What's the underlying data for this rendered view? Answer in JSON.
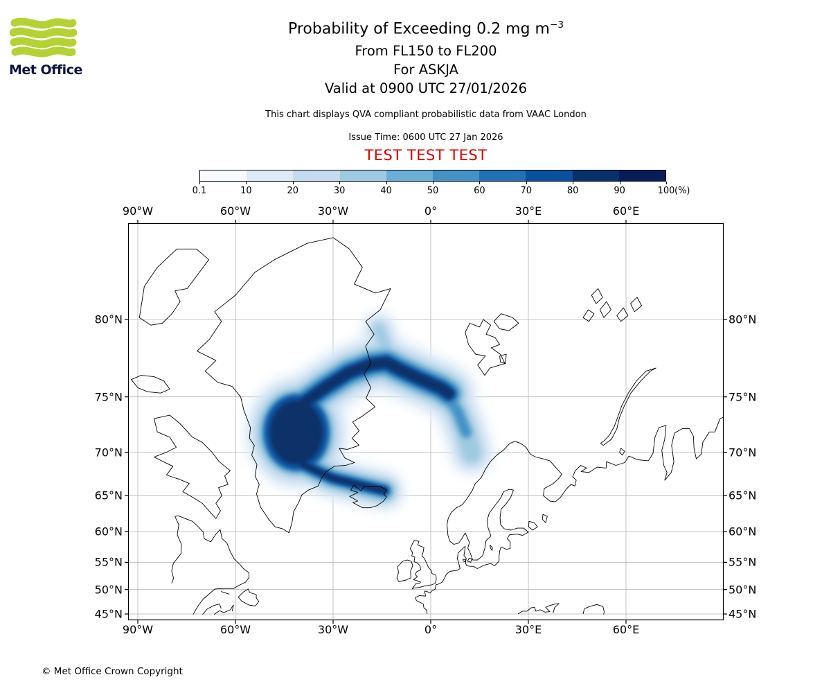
{
  "header": {
    "logo_text": "Met Office",
    "title_main": "Probability of Exceeding 0.2 mg m",
    "title_exponent": "−3",
    "subtitle1": "From FL150 to FL200",
    "subtitle2": "For ASKJA",
    "subtitle3": "Valid at 0900 UTC 27/01/2026",
    "description": "This chart displays QVA compliant probabilistic data from VAAC London",
    "issue_time": "Issue Time: 0600 UTC 27 Jan 2026",
    "test_banner": "TEST TEST TEST"
  },
  "colorbar": {
    "labels": [
      "0.1",
      "10",
      "20",
      "30",
      "40",
      "50",
      "60",
      "70",
      "80",
      "90",
      "100"
    ],
    "unit": "(%)",
    "colors": [
      "#f7fbff",
      "#deebf7",
      "#c6dbef",
      "#9ecae1",
      "#6baed6",
      "#4292c6",
      "#2171b5",
      "#08519c",
      "#08306b",
      "#081d58"
    ]
  },
  "map": {
    "lon_labels": [
      "90°W",
      "60°W",
      "30°W",
      "0°",
      "30°E",
      "60°E"
    ],
    "lon_values": [
      -90,
      -60,
      -30,
      0,
      30,
      60
    ],
    "lat_labels": [
      "80°N",
      "75°N",
      "70°N",
      "65°N",
      "60°N",
      "55°N",
      "50°N",
      "45°N"
    ],
    "lat_values": [
      80,
      75,
      70,
      65,
      60,
      55,
      50,
      45
    ]
  },
  "footer": {
    "copyright": "© Met Office Crown Copyright"
  },
  "colors": {
    "test_red": "#dd0000",
    "logo_green": "#b4d233",
    "logo_navy": "#0e1340",
    "plume_scale_low": "#deebf7",
    "plume_scale_high": "#08306b"
  },
  "chart_data": {
    "type": "heatmap",
    "title": "Probability of Exceeding 0.2 mg m^-3",
    "units": "%",
    "projection": "mercator",
    "map_extent": {
      "lon": [
        -93,
        91
      ],
      "lat": [
        44.6,
        84
      ]
    },
    "grid_lons": [
      -90,
      -60,
      -30,
      0,
      30,
      60
    ],
    "grid_lats": [
      80,
      75,
      70,
      65,
      60,
      55,
      50,
      45
    ],
    "scale_breaks": [
      0.1,
      10,
      20,
      30,
      40,
      50,
      60,
      70,
      80,
      90,
      100
    ],
    "legend_position": "top",
    "plume_features": [
      {
        "area": "Denmark Strait / SE Greenland coast",
        "lon": -42,
        "lat": 70.5,
        "probability_pct": "80-100"
      },
      {
        "area": "Arc across Greenland Sea toward 0 deg at ~76N",
        "lon": -12,
        "lat": 76,
        "probability_pct": "70-100"
      },
      {
        "area": "Branch curving south near 10E down to ~68N",
        "lon": 10,
        "lat": 70,
        "probability_pct": "20-60"
      },
      {
        "area": "Narrow band reaching NW Iceland",
        "lon": -24,
        "lat": 66.5,
        "probability_pct": "60-90"
      },
      {
        "area": "Diffuse lobe extending north toward 80N near 15W",
        "lon": -15,
        "lat": 78.5,
        "probability_pct": "10-40"
      }
    ]
  }
}
